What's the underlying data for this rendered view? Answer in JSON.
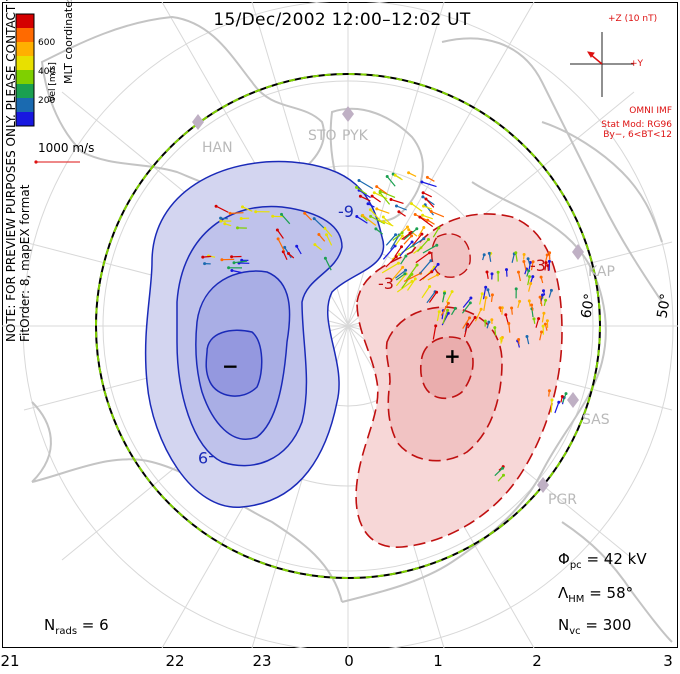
{
  "title": "15/Dec/2002 12:00–12:02 UT",
  "note_line1": "NOTE: FOR PREVIEW PURPOSES ONLY. PLEASE CONTACT VT-SD STAFF FOR VERIFICATION.",
  "note_line2": "FitOrder: 8, mapEX format",
  "mlt_label": "MLT coordinates",
  "colorbar": {
    "label": "Vel [m/s]",
    "ticks": [
      "600",
      "400",
      "200"
    ],
    "colors": [
      "#d40000",
      "#ff6a00",
      "#ffb000",
      "#e8e000",
      "#7fd000",
      "#1aa050",
      "#1a6ab0",
      "#1818e0"
    ]
  },
  "velocity_scale_label": "1000 m/s",
  "imf": {
    "z_label": "+Z (10 nT)",
    "y_label": "+Y",
    "source": "OMNI IMF",
    "model": "Stat Mod: RG96",
    "condition": "By−, 6<BT<12",
    "color": "#d11111"
  },
  "stats": {
    "phi_label": "Φ",
    "phi_sub": "pc",
    "phi_value": " = 42 kV",
    "lambda_label": "Λ",
    "lambda_sub": "HM",
    "lambda_value": " = 58°",
    "nvc_label": "N",
    "nvc_sub": "vc",
    "nvc_value": " = 300",
    "nrads_label": "N",
    "nrads_sub": "rads",
    "nrads_value": " = 6"
  },
  "sites": [
    "HAN",
    "STO",
    "PYK",
    "KAP",
    "SAS",
    "PGR"
  ],
  "latitude_labels": [
    "60°",
    "50°"
  ],
  "contour_labels": [
    "-9",
    "-9",
    "-3",
    "-3"
  ],
  "focus_symbols": {
    "min": "−",
    "max": "+"
  },
  "mlt_ticks": [
    "21",
    "22",
    "23",
    "0",
    "1",
    "2",
    "3"
  ],
  "colors": {
    "negative_fill": "#c9ccee",
    "negative_line": "#1a2ab8",
    "positive_fill": "#f5c9c9",
    "positive_line": "#c01010",
    "boundary": "#7fd000",
    "land": "#c4c4c4"
  }
}
